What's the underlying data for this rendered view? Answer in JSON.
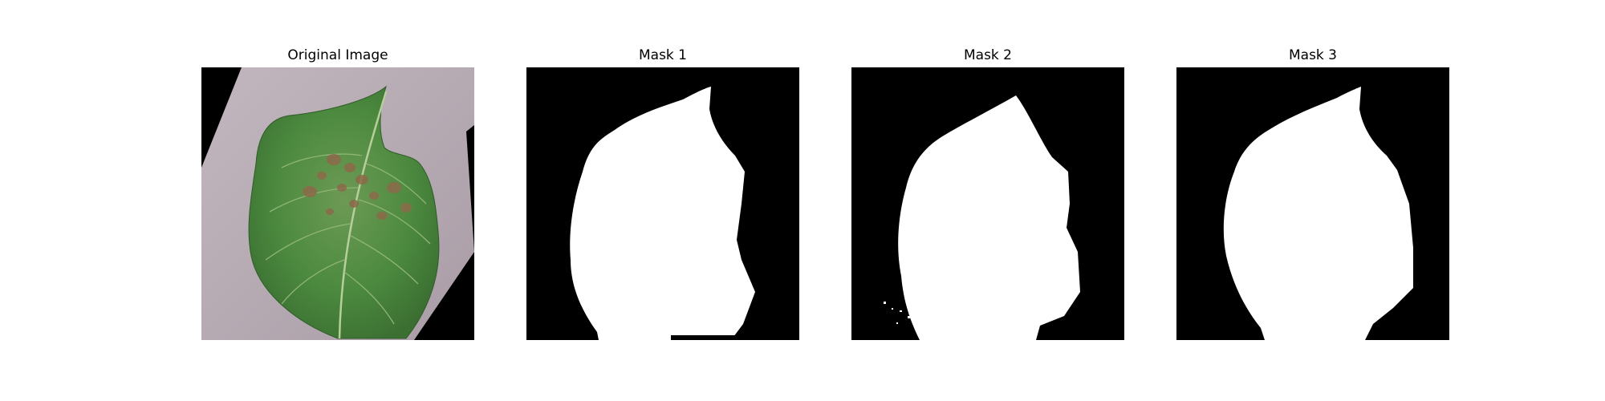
{
  "figure": {
    "panels": [
      {
        "title": "Original Image"
      },
      {
        "title": "Mask 1"
      },
      {
        "title": "Mask 2"
      },
      {
        "title": "Mask 3"
      }
    ]
  },
  "colors": {
    "mask_background": "#000000",
    "mask_foreground": "#ffffff",
    "leaf_green": "#4c8a3f",
    "paper_gray": "#b4a8b0"
  }
}
